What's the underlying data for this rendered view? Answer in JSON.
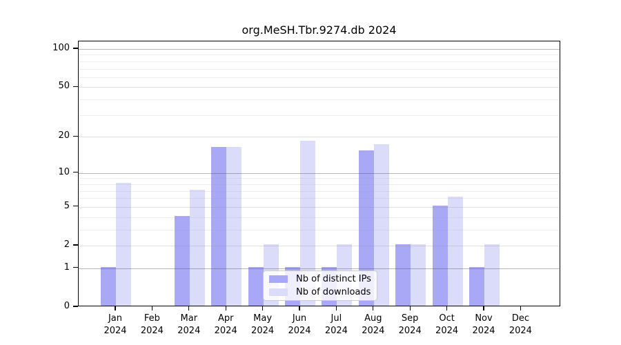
{
  "chart_data": {
    "type": "bar",
    "title": "org.MeSH.Tbr.9274.db 2024",
    "year": "2024",
    "categories": [
      "Jan",
      "Feb",
      "Mar",
      "Apr",
      "May",
      "Jun",
      "Jul",
      "Aug",
      "Sep",
      "Oct",
      "Nov",
      "Dec"
    ],
    "series": [
      {
        "name": "Nb of distinct IPs",
        "color": "#a8a8f6",
        "values": [
          1,
          0,
          4,
          16,
          1,
          1,
          1,
          15,
          2,
          5,
          1,
          0
        ]
      },
      {
        "name": "Nb of downloads",
        "color": "#dbdcfa",
        "values": [
          8,
          0,
          7,
          16,
          2,
          18,
          2,
          17,
          2,
          6,
          2,
          0
        ]
      }
    ],
    "y_axis": {
      "scale": "log10(1+v)",
      "tick_values": [
        0,
        1,
        2,
        5,
        10,
        20,
        50,
        100
      ],
      "decade_grid_values": [
        1,
        10,
        100
      ],
      "minor_grid_values": [
        3,
        4,
        6,
        7,
        8,
        9,
        30,
        40,
        60,
        70,
        80,
        90
      ],
      "ylim": [
        0,
        115
      ]
    },
    "x_axis": {
      "label_line1": "month",
      "label_line2": "year"
    },
    "legend": {
      "position": "lower center",
      "entries": [
        "Nb of distinct IPs",
        "Nb of downloads"
      ]
    },
    "grid": true,
    "colors": {
      "background": "#ffffff",
      "spine": "#000000",
      "text": "#000000"
    }
  }
}
